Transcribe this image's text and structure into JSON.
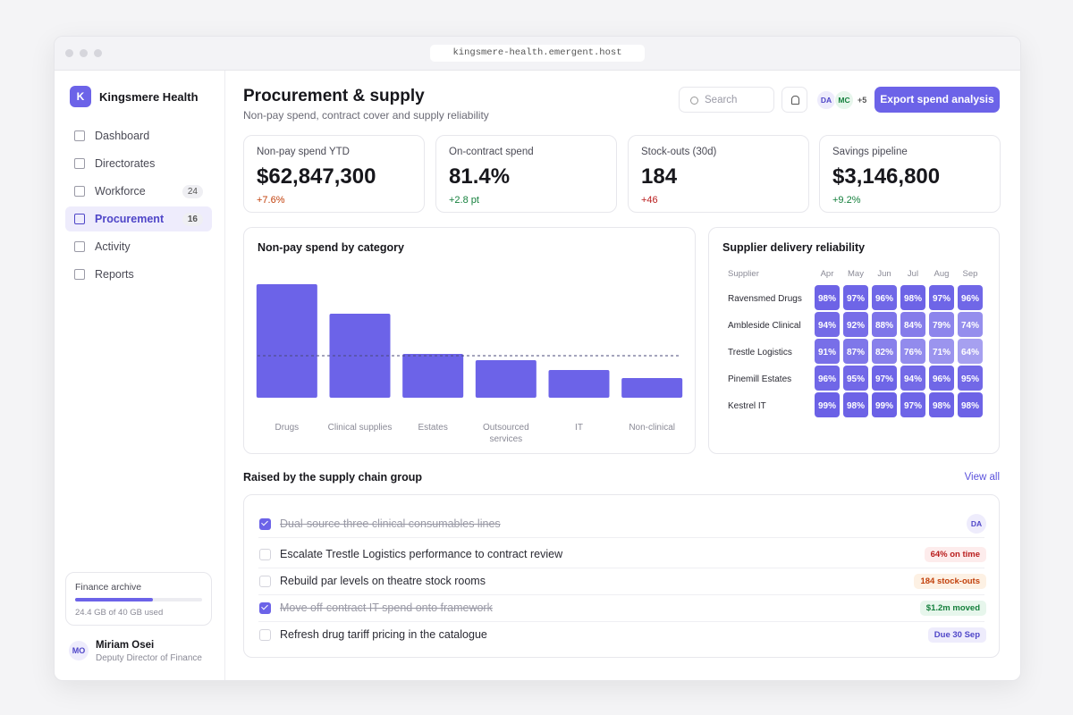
{
  "browser": {
    "url": "kingsmere-health.emergent.host"
  },
  "sidebar": {
    "brand_initial": "K",
    "brand": "Kingsmere Health",
    "nav": [
      {
        "label": "Dashboard"
      },
      {
        "label": "Directorates"
      },
      {
        "label": "Workforce",
        "badge": "24"
      },
      {
        "label": "Procurement",
        "badge": "16",
        "active": true
      },
      {
        "label": "Activity"
      },
      {
        "label": "Reports"
      }
    ],
    "storage": {
      "title": "Finance archive",
      "used": 24.4,
      "total": 40,
      "label": "24.4 GB of 40 GB used"
    },
    "user": {
      "initials": "MO",
      "name": "Miriam Osei",
      "role": "Deputy Director of Finance"
    }
  },
  "header": {
    "title": "Procurement & supply",
    "subtitle": "Non-pay spend, contract cover and supply reliability",
    "search_placeholder": "Search",
    "avatars": [
      "DA",
      "MC"
    ],
    "more": "+5",
    "action": "Export spend analysis"
  },
  "kpis": [
    {
      "label": "Non-pay spend YTD",
      "value": "$62,847,300",
      "delta": "+7.6%",
      "delta_color": "#c2410c"
    },
    {
      "label": "On-contract spend",
      "value": "81.4%",
      "delta": "+2.8 pt",
      "delta_color": "#15803d"
    },
    {
      "label": "Stock-outs (30d)",
      "value": "184",
      "delta": "+46",
      "delta_color": "#b91c1c"
    },
    {
      "label": "Savings pipeline",
      "value": "$3,146,800",
      "delta": "+9.2%",
      "delta_color": "#15803d"
    }
  ],
  "chart_data": [
    {
      "type": "bar",
      "title": "Non-pay spend by category",
      "categories": [
        "Drugs",
        "Clinical supplies",
        "Estates",
        "Outsourced services",
        "IT",
        "Non-clinical"
      ],
      "values": [
        127,
        94,
        49,
        42,
        31,
        22
      ],
      "color": "#6c63e8",
      "ylim": [
        0,
        140
      ],
      "reference_line": 47
    },
    {
      "type": "heatmap",
      "title": "Supplier delivery reliability",
      "row_header": "Supplier",
      "columns": [
        "Apr",
        "May",
        "Jun",
        "Jul",
        "Aug",
        "Sep"
      ],
      "rows": [
        "Ravensmed Drugs",
        "Ambleside Clinical",
        "Trestle Logistics",
        "Pinemill Estates",
        "Kestrel IT"
      ],
      "values": [
        [
          98,
          97,
          96,
          98,
          97,
          96
        ],
        [
          94,
          92,
          88,
          84,
          79,
          74
        ],
        [
          91,
          87,
          82,
          76,
          71,
          64
        ],
        [
          96,
          95,
          97,
          94,
          96,
          95
        ],
        [
          99,
          98,
          99,
          97,
          98,
          98
        ]
      ],
      "value_labels": [
        [
          "98%",
          "97%",
          "96%",
          "98%",
          "97%",
          "96%"
        ],
        [
          "94%",
          "92%",
          "88%",
          "84%",
          "79%",
          "74%"
        ],
        [
          "91%",
          "87%",
          "82%",
          "76%",
          "71%",
          "64%"
        ],
        [
          "96%",
          "95%",
          "97%",
          "94%",
          "96%",
          "95%"
        ],
        [
          "99%",
          "98%",
          "99%",
          "97%",
          "98%",
          "98%"
        ]
      ],
      "color": "#6b61e6"
    }
  ],
  "tasks": {
    "title": "Raised by the supply chain group",
    "link": "View all",
    "items": [
      {
        "text": "Dual-source three clinical consumables lines",
        "done": true,
        "assignee": "DA"
      },
      {
        "text": "Escalate Trestle Logistics performance to contract review",
        "done": false,
        "tag": "64% on time",
        "tag_color": "#b91c1c",
        "tag_bg": "#fdecec"
      },
      {
        "text": "Rebuild par levels on theatre stock rooms",
        "done": false,
        "tag": "184 stock-outs",
        "tag_color": "#c2410c",
        "tag_bg": "#fdf1e4"
      },
      {
        "text": "Move off-contract IT spend onto framework",
        "done": true,
        "tag": "$1.2m moved",
        "tag_color": "#15803d",
        "tag_bg": "#e7f6ec"
      },
      {
        "text": "Refresh drug tariff pricing in the catalogue",
        "done": false,
        "tag": "Due 30 Sep",
        "tag_color": "#4f46c8",
        "tag_bg": "#eeecfc"
      }
    ]
  }
}
